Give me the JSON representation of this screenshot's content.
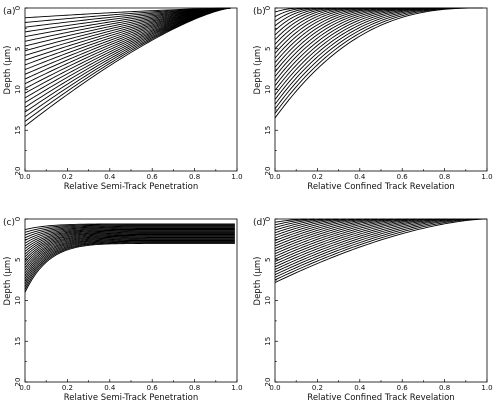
{
  "chart_data": [
    {
      "panel": "(a)",
      "type": "line",
      "xlabel": "Relative Semi-Track Penetration",
      "ylabel": "Depth (μm)",
      "xlim": [
        0,
        1
      ],
      "ylim": [
        0,
        20
      ],
      "y_inverted": true,
      "x_ticks": [
        "0.0",
        "0.2",
        "0.4",
        "0.6",
        "0.8",
        "1.0"
      ],
      "y_ticks": [
        "0",
        "5",
        "10",
        "15",
        "20"
      ],
      "curve_family": {
        "count": 24,
        "start_x": 0.0,
        "start_depth_min": 1.2,
        "start_depth_max": 14.5,
        "end_x": 0.97,
        "end_depth": 0.0,
        "curvature_exponent": 1.35
      }
    },
    {
      "panel": "(b)",
      "type": "line",
      "xlabel": "Relative Confined Track Revelation",
      "ylabel": "Depth (μm)",
      "xlim": [
        0,
        1
      ],
      "ylim": [
        0,
        20
      ],
      "y_inverted": true,
      "x_ticks": [
        "0.0",
        "0.2",
        "0.4",
        "0.6",
        "0.8",
        "1.0"
      ],
      "y_ticks": [
        "0",
        "5",
        "10",
        "15",
        "20"
      ],
      "curve_family": {
        "count": 24,
        "start_x": 0.0,
        "start_depth_min": 0.5,
        "start_depth_max": 13.5,
        "end_x_min": 0.15,
        "end_x_max": 0.98,
        "end_depth": 0.0,
        "curvature_exponent": 2.6
      }
    },
    {
      "panel": "(c)",
      "type": "line",
      "xlabel": "Relative Semi-Track Penetration",
      "ylabel": "Depth (μm)",
      "xlim": [
        0,
        1
      ],
      "ylim": [
        0,
        20
      ],
      "y_inverted": true,
      "x_ticks": [
        "0.0",
        "0.2",
        "0.4",
        "0.6",
        "0.8",
        "1.0"
      ],
      "y_ticks": [
        "0",
        "5",
        "10",
        "15",
        "20"
      ],
      "curve_family": {
        "count": 24,
        "start_x": 0.0,
        "start_depth_min": 1.3,
        "start_depth_max": 9.0,
        "end_x": 0.99,
        "end_depth_min": 0.6,
        "end_depth_max": 3.0,
        "curvature_exponent": 9.0
      }
    },
    {
      "panel": "(d)",
      "type": "line",
      "xlabel": "Relative Confined Track Revelation",
      "ylabel": "Depth (μm)",
      "xlim": [
        0,
        1
      ],
      "ylim": [
        0,
        20
      ],
      "y_inverted": true,
      "x_ticks": [
        "0.0",
        "0.2",
        "0.4",
        "0.6",
        "0.8",
        "1.0"
      ],
      "y_ticks": [
        "0",
        "5",
        "10",
        "15",
        "20"
      ],
      "curve_family": {
        "count": 24,
        "start_x": 0.0,
        "start_depth_min": 0.4,
        "start_depth_max": 7.8,
        "end_x_min": 0.15,
        "end_x_max": 1.0,
        "end_depth": 0.0,
        "curvature_exponent": 1.6
      }
    }
  ]
}
